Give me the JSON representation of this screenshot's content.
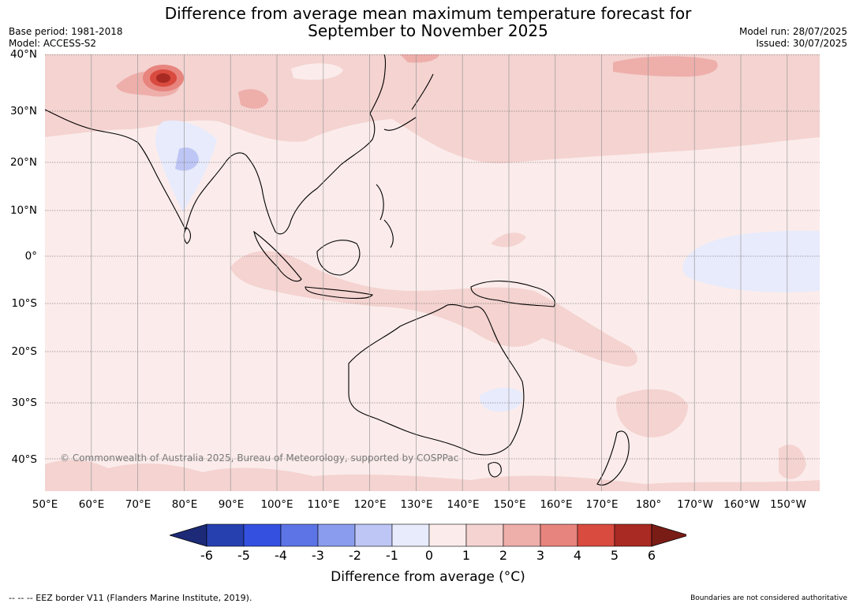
{
  "title_line1": "Difference from average mean maximum temperature forecast for",
  "title_line2": "September to November 2025",
  "meta_left": {
    "base_period": "Base period: 1981-2018",
    "model": "Model: ACCESS-S2"
  },
  "meta_right": {
    "model_run": "Model run: 28/07/2025",
    "issued": "Issued: 30/07/2025"
  },
  "lat_labels": [
    "40°N",
    "30°N",
    "20°N",
    "10°N",
    "0°",
    "10°S",
    "20°S",
    "30°S",
    "40°S"
  ],
  "lon_labels": [
    "50°E",
    "60°E",
    "70°E",
    "80°E",
    "90°E",
    "100°E",
    "110°E",
    "120°E",
    "130°E",
    "140°E",
    "150°E",
    "160°E",
    "170°E",
    "180°",
    "170°W",
    "160°W",
    "150°W"
  ],
  "copyright": "© Commonwealth of Australia 2025, Bureau of Meteorology, supported by COSPPac",
  "colorbar": {
    "ticks": [
      "-6",
      "-5",
      "-4",
      "-3",
      "-2",
      "-1",
      "0",
      "1",
      "2",
      "3",
      "4",
      "5",
      "6"
    ],
    "colors": [
      "#1c2a78",
      "#2740b0",
      "#3350e0",
      "#5c74e6",
      "#8a9ced",
      "#bdc6f4",
      "#e8ebfb",
      "#fbeceb",
      "#f4d3d0",
      "#eeaeaa",
      "#e7847d",
      "#d94a3f",
      "#a92a22",
      "#7a1c16"
    ],
    "label": "Difference from average (°C)"
  },
  "footer_left": "-- -- -- EEZ border V11 (Flanders Marine Institute, 2019).",
  "footer_right": "Boundaries are not considered authoritative"
}
